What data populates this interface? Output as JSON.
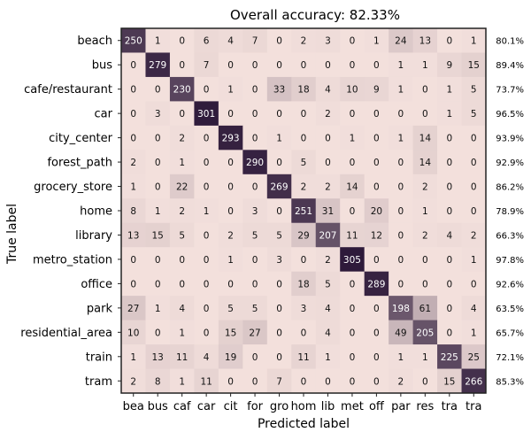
{
  "chart_data": {
    "type": "heatmap",
    "title": "Overall accuracy: 82.33%",
    "xlabel": "Predicted label",
    "ylabel": "True label",
    "row_labels": [
      "beach",
      "bus",
      "cafe/restaurant",
      "car",
      "city_center",
      "forest_path",
      "grocery_store",
      "home",
      "library",
      "metro_station",
      "office",
      "park",
      "residential_area",
      "train",
      "tram"
    ],
    "col_labels": [
      "bea",
      "bus",
      "caf",
      "car",
      "cit",
      "for",
      "gro",
      "hom",
      "lib",
      "met",
      "off",
      "par",
      "res",
      "tra",
      "tra"
    ],
    "matrix": [
      [
        250,
        1,
        0,
        6,
        4,
        7,
        0,
        2,
        3,
        0,
        1,
        24,
        13,
        0,
        1
      ],
      [
        0,
        279,
        0,
        7,
        0,
        0,
        0,
        0,
        0,
        0,
        0,
        1,
        1,
        9,
        15
      ],
      [
        0,
        0,
        230,
        0,
        1,
        0,
        33,
        18,
        4,
        10,
        9,
        1,
        0,
        1,
        5
      ],
      [
        0,
        3,
        0,
        301,
        0,
        0,
        0,
        0,
        2,
        0,
        0,
        0,
        0,
        1,
        5
      ],
      [
        0,
        0,
        2,
        0,
        293,
        0,
        1,
        0,
        0,
        1,
        0,
        1,
        14,
        0,
        0
      ],
      [
        2,
        0,
        1,
        0,
        0,
        290,
        0,
        5,
        0,
        0,
        0,
        0,
        14,
        0,
        0
      ],
      [
        1,
        0,
        22,
        0,
        0,
        0,
        269,
        2,
        2,
        14,
        0,
        0,
        2,
        0,
        0
      ],
      [
        8,
        1,
        2,
        1,
        0,
        3,
        0,
        251,
        31,
        0,
        20,
        0,
        1,
        0,
        0
      ],
      [
        13,
        15,
        5,
        0,
        2,
        5,
        5,
        29,
        207,
        11,
        12,
        0,
        2,
        4,
        2
      ],
      [
        0,
        0,
        0,
        0,
        1,
        0,
        3,
        0,
        2,
        305,
        0,
        0,
        0,
        0,
        1
      ],
      [
        0,
        0,
        0,
        0,
        0,
        0,
        0,
        18,
        5,
        0,
        289,
        0,
        0,
        0,
        0
      ],
      [
        27,
        1,
        4,
        0,
        5,
        5,
        0,
        3,
        4,
        0,
        0,
        198,
        61,
        0,
        4
      ],
      [
        10,
        0,
        1,
        0,
        15,
        27,
        0,
        0,
        4,
        0,
        0,
        49,
        205,
        0,
        1
      ],
      [
        1,
        13,
        11,
        4,
        19,
        0,
        0,
        11,
        1,
        0,
        0,
        1,
        1,
        225,
        25
      ],
      [
        2,
        8,
        1,
        11,
        0,
        0,
        7,
        0,
        0,
        0,
        0,
        2,
        0,
        15,
        266
      ]
    ],
    "row_accuracy": [
      "80.1%",
      "89.4%",
      "73.7%",
      "96.5%",
      "93.9%",
      "92.9%",
      "86.2%",
      "78.9%",
      "66.3%",
      "97.8%",
      "92.6%",
      "63.5%",
      "65.7%",
      "72.1%",
      "85.3%"
    ],
    "vmax": 305,
    "colors": {
      "low": "#f3e0dc",
      "high": "#2e1a3a",
      "text_dark": "#111111",
      "text_light": "#ffffff"
    }
  }
}
